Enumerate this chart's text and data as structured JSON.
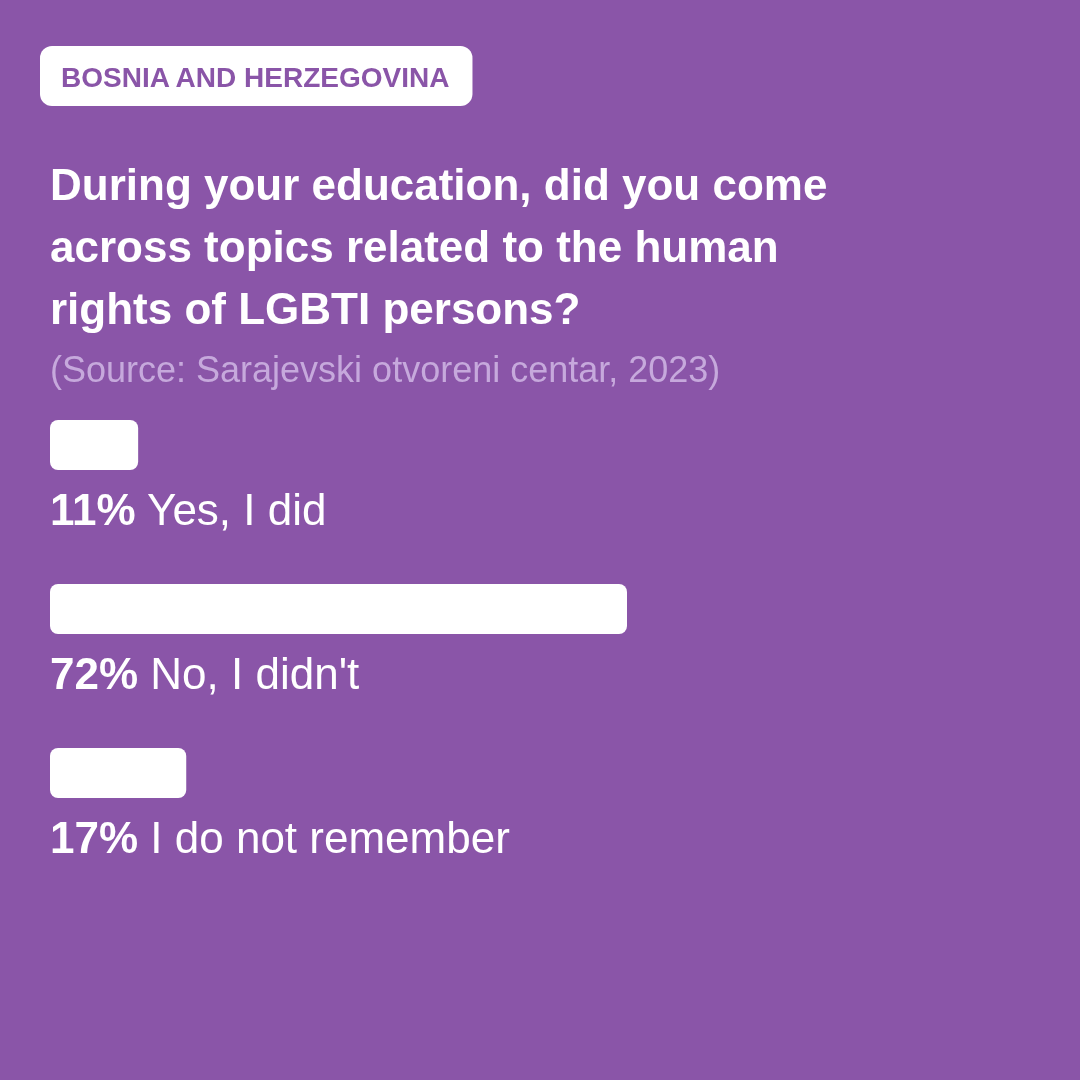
{
  "chart_data": {
    "type": "bar",
    "orientation": "horizontal",
    "subtitle": "BOSNIA AND HERZEGOVINA",
    "title": "During your education, did you come across topics related to the human rights of LGBTI persons?",
    "annotations": [
      "(Source: Sarajevski otvoreni centar, 2023)"
    ],
    "categories": [
      "Yes, I did",
      "No, I didn't",
      "I do not remember"
    ],
    "values": [
      11,
      72,
      17
    ],
    "value_labels": [
      "11%",
      "72%",
      "17%"
    ],
    "color": "#ffffff"
  }
}
